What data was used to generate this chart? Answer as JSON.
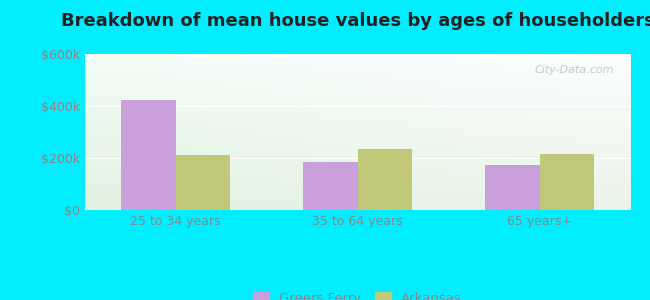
{
  "title": "Breakdown of mean house values by ages of householders",
  "categories": [
    "25 to 34 years",
    "35 to 64 years",
    "65 years+"
  ],
  "greers_ferry": [
    425000,
    185000,
    175000
  ],
  "arkansas": [
    210000,
    235000,
    215000
  ],
  "bar_color_greers": "#c9a0dc",
  "bar_color_arkansas": "#c2c87a",
  "ylim": [
    0,
    600000
  ],
  "yticks": [
    0,
    200000,
    400000,
    600000
  ],
  "ytick_labels": [
    "$0",
    "$200k",
    "$400k",
    "$600k"
  ],
  "legend_labels": [
    "Greers Ferry",
    "Arkansas"
  ],
  "title_fontsize": 13,
  "tick_fontsize": 9,
  "background_outer": "#00eeff",
  "bar_width": 0.3
}
